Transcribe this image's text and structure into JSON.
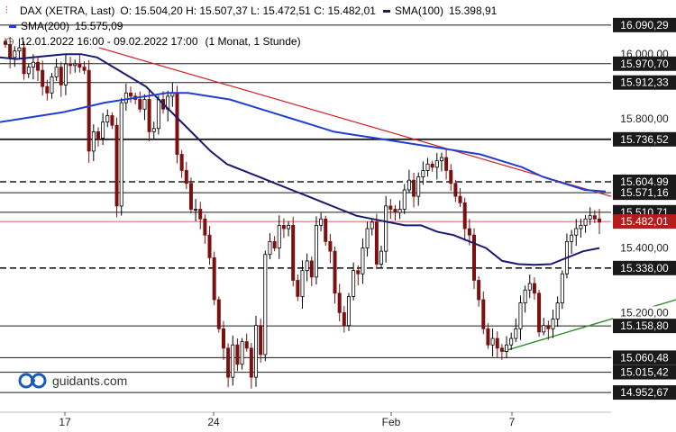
{
  "legend": {
    "instrument": "DAX (XETRA, Last)",
    "ohlc": "O: 15.504,20  H: 15.507,37  L: 15.472,51  C: 15.482,01",
    "sma100_label": "SMA(100)",
    "sma100_value": "15.398,91",
    "sma200_label": "SMA(200)",
    "sma200_value": "15.575,09",
    "period": "12.01.2022 16:00 - 09.02.2022 17:00",
    "interval": "(1 Monat, 1 Stunde)"
  },
  "logo_text": "guidants.com",
  "colors": {
    "candle_up": "#000000",
    "candle_down": "#7a1010",
    "sma100": "#1a1a6e",
    "sma200": "#1f3fd0",
    "trend_red": "#d32020",
    "trend_green": "#2e8b2e",
    "label_bg": "#1a1a1a",
    "label_text": "#ffffff"
  },
  "chart_data": {
    "type": "candlestick",
    "ylim": [
      14900,
      16140
    ],
    "y_ticks": [
      "16.000,00",
      "15.800,00",
      "15.400,00",
      "15.200,00"
    ],
    "y_tick_values": [
      16000,
      15800,
      15400,
      15200
    ],
    "x_ticks": [
      "17",
      "24",
      "Feb",
      "7"
    ],
    "levels": [
      {
        "label": "16.090,29",
        "value": 16090.29,
        "style": "solid"
      },
      {
        "label": "15.970,70",
        "value": 15970.7,
        "style": "solid"
      },
      {
        "label": "15.912,33",
        "value": 15912.33,
        "style": "solid"
      },
      {
        "label": "15.736,52",
        "value": 15736.52,
        "style": "solid-bold"
      },
      {
        "label": "15.604,99",
        "value": 15604.99,
        "style": "dashed"
      },
      {
        "label": "15.571,16",
        "value": 15571.16,
        "style": "solid"
      },
      {
        "label": "15.510,71",
        "value": 15510.71,
        "style": "solid"
      },
      {
        "label": "15.482,01",
        "value": 15482.01,
        "style": "current"
      },
      {
        "label": "15.338,00",
        "value": 15338.0,
        "style": "dashed"
      },
      {
        "label": "15.158,80",
        "value": 15158.8,
        "style": "solid"
      },
      {
        "label": "15.060,48",
        "value": 15060.48,
        "style": "solid"
      },
      {
        "label": "15.015,42",
        "value": 15015.42,
        "style": "solid"
      },
      {
        "label": "14.952,67",
        "value": 14952.67,
        "style": "solid"
      }
    ],
    "series": [
      {
        "name": "DAX (XETRA, Last)",
        "kind": "close",
        "values": [
          16030,
          15990,
          16010,
          16020,
          15940,
          15960,
          15975,
          15950,
          15900,
          15880,
          15930,
          15960,
          15905,
          15970,
          15965,
          15970,
          15960,
          15950,
          15700,
          15760,
          15740,
          15790,
          15810,
          15780,
          15530,
          15850,
          15880,
          15870,
          15860,
          15830,
          15860,
          15760,
          15770,
          15860,
          15830,
          15870,
          15880,
          15690,
          15640,
          15600,
          15520,
          15520,
          15490,
          15440,
          15370,
          15240,
          15150,
          15090,
          15000,
          15100,
          15040,
          15110,
          15090,
          15000,
          15160,
          15070,
          15380,
          15420,
          15400,
          15470,
          15460,
          15470,
          15300,
          15250,
          15330,
          15360,
          15310,
          15470,
          15490,
          15420,
          15390,
          15260,
          15200,
          15160,
          15250,
          15330,
          15320,
          15400,
          15460,
          15480,
          15350,
          15390,
          15530,
          15520,
          15510,
          15520,
          15580,
          15610,
          15560,
          15620,
          15640,
          15660,
          15650,
          15670,
          15680,
          15640,
          15600,
          15560,
          15540,
          15460,
          15440,
          15300,
          15240,
          15150,
          15100,
          15120,
          15090,
          15080,
          15100,
          15120,
          15150,
          15230,
          15270,
          15290,
          15260,
          15140,
          15160,
          15150,
          15180,
          15230,
          15320,
          15420,
          15440,
          15460,
          15470,
          15490,
          15500,
          15490,
          15480
        ]
      },
      {
        "name": "SMA(100)",
        "kind": "line",
        "values": [
          15990,
          15985,
          15990,
          15995,
          16000,
          16000,
          15990,
          15960,
          15930,
          15900,
          15850,
          15800,
          15750,
          15700,
          15660,
          15640,
          15620,
          15600,
          15580,
          15560,
          15540,
          15520,
          15500,
          15490,
          15480,
          15470,
          15470,
          15450,
          15440,
          15420,
          15400,
          15360,
          15350,
          15348,
          15350,
          15370,
          15390,
          15400
        ]
      },
      {
        "name": "SMA(200)",
        "kind": "line",
        "values": [
          15790,
          15800,
          15810,
          15820,
          15835,
          15850,
          15860,
          15870,
          15880,
          15880,
          15870,
          15860,
          15840,
          15820,
          15800,
          15780,
          15760,
          15750,
          15740,
          15730,
          15720,
          15710,
          15700,
          15690,
          15670,
          15650,
          15620,
          15600,
          15580,
          15575
        ]
      }
    ]
  }
}
